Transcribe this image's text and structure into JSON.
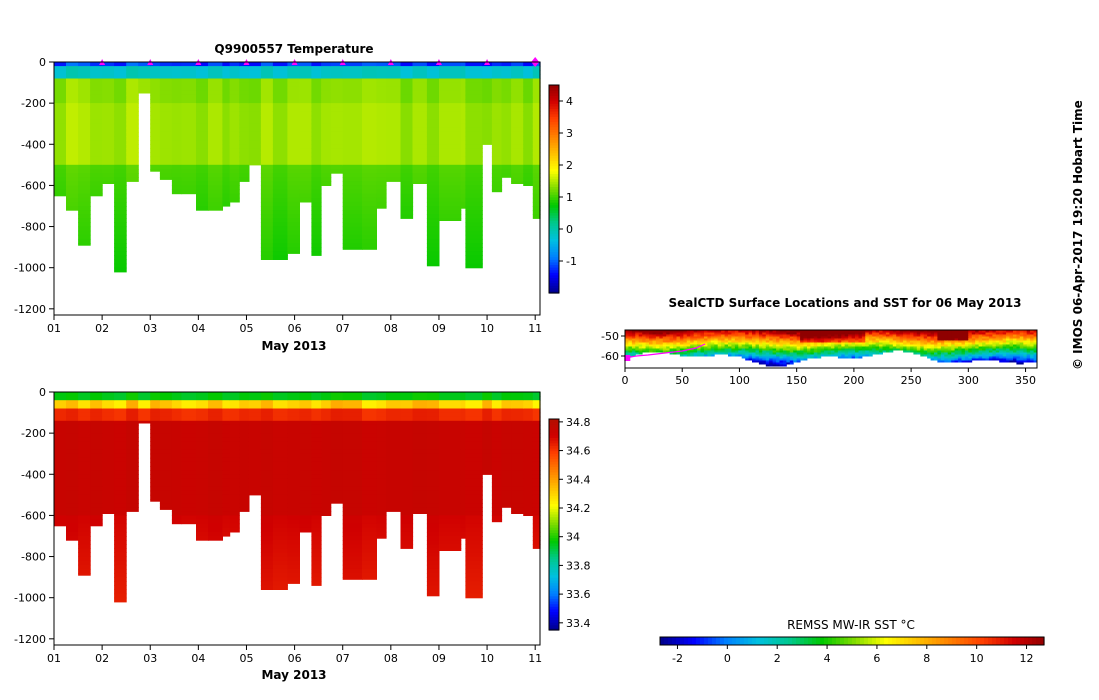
{
  "credit": "© IMOS 06-Apr-2017 19:20 Hobart Time",
  "chart_data": [
    {
      "id": "temperature",
      "type": "heatmap",
      "title": "Q9900557  Temperature",
      "xlabel": "May 2013",
      "x_tick_labels": [
        "01",
        "02",
        "03",
        "04",
        "05",
        "06",
        "07",
        "08",
        "09",
        "10",
        "11"
      ],
      "x_tick_values": [
        1,
        2,
        3,
        4,
        5,
        6,
        7,
        8,
        9,
        10,
        11
      ],
      "xlim": [
        1,
        11.1
      ],
      "ylim": [
        -1230,
        0
      ],
      "y_ticks": [
        0,
        -200,
        -400,
        -600,
        -800,
        -1000,
        -1200
      ],
      "profile_markers_x": [
        2,
        3,
        4,
        5,
        6,
        7,
        8,
        9,
        10,
        11
      ],
      "profiles": {
        "x_start": [
          1.0,
          1.25,
          1.5,
          1.75,
          2.0,
          2.25,
          2.5,
          2.75,
          3.0,
          3.2,
          3.45,
          3.65,
          3.95,
          4.2,
          4.5,
          4.65,
          4.85,
          5.05,
          5.3,
          5.55,
          5.85,
          6.1,
          6.35,
          6.55,
          6.75,
          7.0,
          7.4,
          7.7,
          7.9,
          8.2,
          8.45,
          8.75,
          9.0,
          9.45,
          9.55,
          9.9,
          10.1,
          10.3,
          10.5,
          10.75,
          10.95
        ],
        "max_depth": [
          650,
          720,
          890,
          650,
          590,
          1020,
          580,
          150,
          530,
          570,
          640,
          640,
          720,
          720,
          700,
          680,
          580,
          500,
          960,
          960,
          930,
          680,
          940,
          600,
          540,
          910,
          910,
          710,
          580,
          760,
          590,
          990,
          770,
          710,
          1000,
          400,
          630,
          560,
          590,
          600,
          760
        ]
      },
      "colorbar": {
        "tick_values": [
          -1,
          0,
          1,
          2,
          3,
          4
        ],
        "tick_labels": [
          "-1",
          "0",
          "1",
          "2",
          "3",
          "4"
        ],
        "range": [
          -2,
          4.5
        ],
        "colors": [
          "#00008f",
          "#0000ff",
          "#0080ff",
          "#00c0e0",
          "#00c88c",
          "#00c800",
          "#80dc00",
          "#ffff00",
          "#ffc000",
          "#ff8000",
          "#ff4000",
          "#d00000",
          "#8f0000"
        ]
      }
    },
    {
      "id": "salinity",
      "type": "heatmap",
      "title": "",
      "xlabel": "May 2013",
      "x_tick_labels": [
        "01",
        "02",
        "03",
        "04",
        "05",
        "06",
        "07",
        "08",
        "09",
        "10",
        "11"
      ],
      "x_tick_values": [
        1,
        2,
        3,
        4,
        5,
        6,
        7,
        8,
        9,
        10,
        11
      ],
      "xlim": [
        1,
        11.1
      ],
      "ylim": [
        -1230,
        0
      ],
      "y_ticks": [
        0,
        -200,
        -400,
        -600,
        -800,
        -1000,
        -1200
      ],
      "profiles": {
        "x_start": [
          1.0,
          1.25,
          1.5,
          1.75,
          2.0,
          2.25,
          2.5,
          2.75,
          3.0,
          3.2,
          3.45,
          3.65,
          3.95,
          4.2,
          4.5,
          4.65,
          4.85,
          5.05,
          5.3,
          5.55,
          5.85,
          6.1,
          6.35,
          6.55,
          6.75,
          7.0,
          7.4,
          7.7,
          7.9,
          8.2,
          8.45,
          8.75,
          9.0,
          9.45,
          9.55,
          9.9,
          10.1,
          10.3,
          10.5,
          10.75,
          10.95
        ],
        "max_depth": [
          650,
          720,
          890,
          650,
          590,
          1020,
          580,
          150,
          530,
          570,
          640,
          640,
          720,
          720,
          700,
          680,
          580,
          500,
          960,
          960,
          930,
          680,
          940,
          600,
          540,
          910,
          910,
          710,
          580,
          760,
          590,
          990,
          770,
          710,
          1000,
          400,
          630,
          560,
          590,
          600,
          760
        ]
      },
      "colorbar": {
        "tick_values": [
          33.4,
          33.6,
          33.8,
          34,
          34.2,
          34.4,
          34.6,
          34.8
        ],
        "tick_labels": [
          "33.4",
          "33.6",
          "33.8",
          "34",
          "34.2",
          "34.4",
          "34.6",
          "34.8"
        ],
        "range": [
          33.35,
          34.82
        ],
        "colors": [
          "#00008f",
          "#0000ff",
          "#0080ff",
          "#00c0e0",
          "#00c88c",
          "#00c800",
          "#80dc00",
          "#ffff00",
          "#ffc000",
          "#ff8000",
          "#ff4000",
          "#d00000",
          "#b01000"
        ]
      }
    },
    {
      "id": "sst-map",
      "type": "heatmap",
      "title": "SealCTD Surface Locations and SST for 06 May 2013",
      "x_ticks": [
        0,
        50,
        100,
        150,
        200,
        250,
        300,
        350
      ],
      "x_tick_labels": [
        "0",
        "50",
        "100",
        "150",
        "200",
        "250",
        "300",
        "350"
      ],
      "y_ticks": [
        -50,
        -60
      ],
      "y_tick_labels": [
        "-50",
        "-60"
      ],
      "xlim": [
        0,
        360
      ],
      "ylim": [
        -66,
        -47
      ],
      "track": [
        [
          2,
          -61
        ],
        [
          5,
          -60.5
        ],
        [
          10,
          -60
        ],
        [
          20,
          -59.5
        ],
        [
          35,
          -58.5
        ],
        [
          50,
          -57.5
        ],
        [
          62,
          -56
        ],
        [
          70,
          -54
        ]
      ],
      "colorbar": {
        "label": "REMSS MW-IR SST °C",
        "tick_values": [
          -2,
          0,
          2,
          4,
          6,
          8,
          10,
          12
        ],
        "tick_labels": [
          "-2",
          "0",
          "2",
          "4",
          "6",
          "8",
          "10",
          "12"
        ],
        "range": [
          -2.7,
          12.7
        ],
        "colors": [
          "#00008f",
          "#0000ff",
          "#0080ff",
          "#00c0e0",
          "#00c88c",
          "#00c800",
          "#80dc00",
          "#ffff00",
          "#ffc000",
          "#ff8000",
          "#ff4000",
          "#d00000",
          "#8f0000"
        ]
      }
    }
  ]
}
